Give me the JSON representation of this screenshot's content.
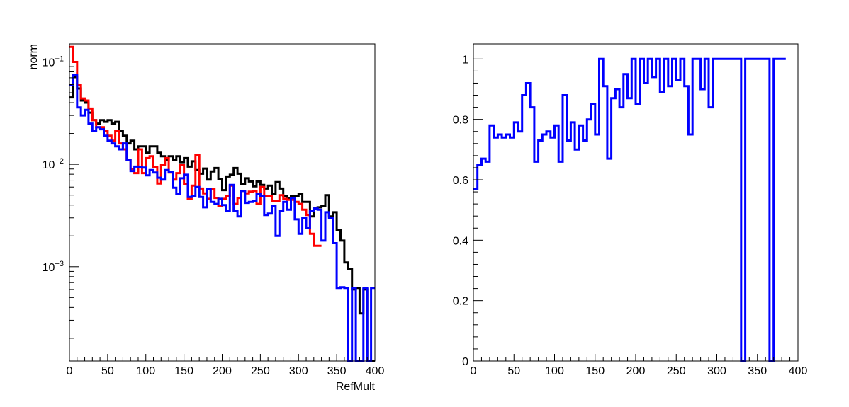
{
  "chart_data": [
    {
      "type": "step",
      "title": "",
      "xlabel": "RefMult",
      "ylabel": "norm",
      "xlim": [
        0,
        400
      ],
      "ylim": [
        0.00012,
        0.15
      ],
      "yscale": "log",
      "grid": false,
      "x_tick_labels": [
        "0",
        "50",
        "100",
        "150",
        "200",
        "250",
        "300",
        "350",
        "400"
      ],
      "y_tick_labels": [
        {
          "base": "10",
          "exp": "−1",
          "value": 0.1
        },
        {
          "base": "10",
          "exp": "−2",
          "value": 0.01
        },
        {
          "base": "10",
          "exp": "−3",
          "value": 0.001
        }
      ],
      "bin_width": 5,
      "series": [
        {
          "color": "#000000",
          "values": [
            0.045,
            0.071,
            0.055,
            0.042,
            0.04,
            0.032,
            0.027,
            0.025,
            0.027,
            0.026,
            0.027,
            0.025,
            0.026,
            0.021,
            0.019,
            0.016,
            0.017,
            0.014,
            0.015,
            0.015,
            0.013,
            0.015,
            0.015,
            0.013,
            0.012,
            0.011,
            0.012,
            0.011,
            0.012,
            0.0105,
            0.0115,
            0.0095,
            0.0107,
            0.0088,
            0.0081,
            0.0091,
            0.0071,
            0.0085,
            0.0092,
            0.0072,
            0.0056,
            0.0076,
            0.0079,
            0.0092,
            0.0081,
            0.0064,
            0.0073,
            0.0068,
            0.0061,
            0.0068,
            0.0063,
            0.0058,
            0.0062,
            0.0051,
            0.0067,
            0.0058,
            0.0049,
            0.0047,
            0.0049,
            0.0049,
            0.0051,
            0.0043,
            0.0043,
            0.0031,
            0.0037,
            0.0038,
            0.0039,
            0.005,
            0.0031,
            0.0034,
            0.0023,
            0.0018,
            0.0011,
            0.00095,
            0.0006,
            0.00062,
            0.00035,
            0.0006,
            0.00012,
            0.00012
          ]
        },
        {
          "color": "#ff0000",
          "values": [
            0.14,
            0.1,
            0.06,
            0.044,
            0.042,
            0.035,
            0.027,
            0.023,
            0.023,
            0.021,
            0.019,
            0.017,
            0.021,
            0.016,
            0.014,
            0.011,
            0.009,
            0.0082,
            0.014,
            0.0082,
            0.0115,
            0.012,
            0.0094,
            0.0065,
            0.0098,
            0.0115,
            0.0083,
            0.0071,
            0.0082,
            0.0099,
            0.0064,
            0.0046,
            0.0062,
            0.0124,
            0.0058,
            0.0052,
            0.0046,
            0.0057,
            0.0047,
            0.0039,
            0.0046,
            0.0049,
            0.0062,
            0.0041,
            0.0047,
            0.0055,
            0.0052,
            0.0054,
            0.0055,
            0.0041,
            0.006,
            0.0049,
            0.0049,
            0.0044,
            0.0044,
            0.005,
            0.0046,
            0.0045,
            0.0045,
            0.0043,
            0.0041,
            0.0036,
            0.0032,
            0.0021,
            0.0016,
            0.0016
          ]
        },
        {
          "color": "#0000ff",
          "values": [
            0.06,
            0.074,
            0.036,
            0.03,
            0.034,
            0.025,
            0.021,
            0.023,
            0.022,
            0.019,
            0.017,
            0.016,
            0.015,
            0.014,
            0.016,
            0.011,
            0.0086,
            0.0095,
            0.0094,
            0.0093,
            0.0078,
            0.0088,
            0.0083,
            0.0074,
            0.0071,
            0.0088,
            0.0084,
            0.0059,
            0.0051,
            0.0073,
            0.0079,
            0.0048,
            0.0049,
            0.006,
            0.0048,
            0.0038,
            0.0057,
            0.0043,
            0.0041,
            0.0046,
            0.004,
            0.0035,
            0.0063,
            0.0035,
            0.0031,
            0.0055,
            0.0042,
            0.0043,
            0.0044,
            0.0051,
            0.0049,
            0.0032,
            0.0033,
            0.0039,
            0.002,
            0.0035,
            0.0043,
            0.0036,
            0.0047,
            0.0029,
            0.0021,
            0.003,
            0.0024,
            0.0035,
            0.0037,
            0.0036,
            0.0018,
            0.0034,
            0.003,
            0.0017,
            0.00062,
            0.00063,
            0.00062,
            0.00012,
            0.00062,
            0.00012,
            0.00012,
            0.00062,
            0.00012,
            0.00062
          ]
        }
      ]
    },
    {
      "type": "step",
      "title": "",
      "xlabel": "",
      "ylabel": "",
      "xlim": [
        0,
        400
      ],
      "ylim": [
        0,
        1.05
      ],
      "grid": false,
      "x_tick_labels": [
        "0",
        "50",
        "100",
        "150",
        "200",
        "250",
        "300",
        "350",
        "400"
      ],
      "y_ticks": [
        0,
        0.2,
        0.4,
        0.6,
        0.8,
        1
      ],
      "y_tick_labels": [
        "0",
        "0.2",
        "0.4",
        "0.6",
        "0.8",
        "1"
      ],
      "bin_width": 5,
      "series": [
        {
          "color": "#0000ff",
          "values": [
            0.57,
            0.65,
            0.67,
            0.66,
            0.78,
            0.74,
            0.75,
            0.74,
            0.75,
            0.74,
            0.79,
            0.76,
            0.88,
            0.92,
            0.84,
            0.66,
            0.73,
            0.75,
            0.76,
            0.74,
            0.78,
            0.66,
            0.88,
            0.73,
            0.79,
            0.7,
            0.78,
            0.73,
            0.8,
            0.85,
            0.75,
            1.0,
            0.91,
            0.67,
            0.87,
            0.9,
            0.84,
            0.95,
            0.87,
            1.0,
            0.85,
            1.0,
            0.92,
            1.0,
            0.94,
            1.0,
            0.89,
            1.0,
            0.91,
            1.0,
            0.93,
            1.0,
            0.91,
            0.75,
            1.0,
            1.0,
            0.9,
            1.0,
            0.84,
            1.0,
            1.0,
            1.0,
            1.0,
            1.0,
            1.0,
            1.0,
            0.0,
            1.0,
            1.0,
            1.0,
            1.0,
            1.0,
            1.0,
            0.0,
            1.0,
            1.0,
            1.0
          ]
        }
      ]
    }
  ]
}
